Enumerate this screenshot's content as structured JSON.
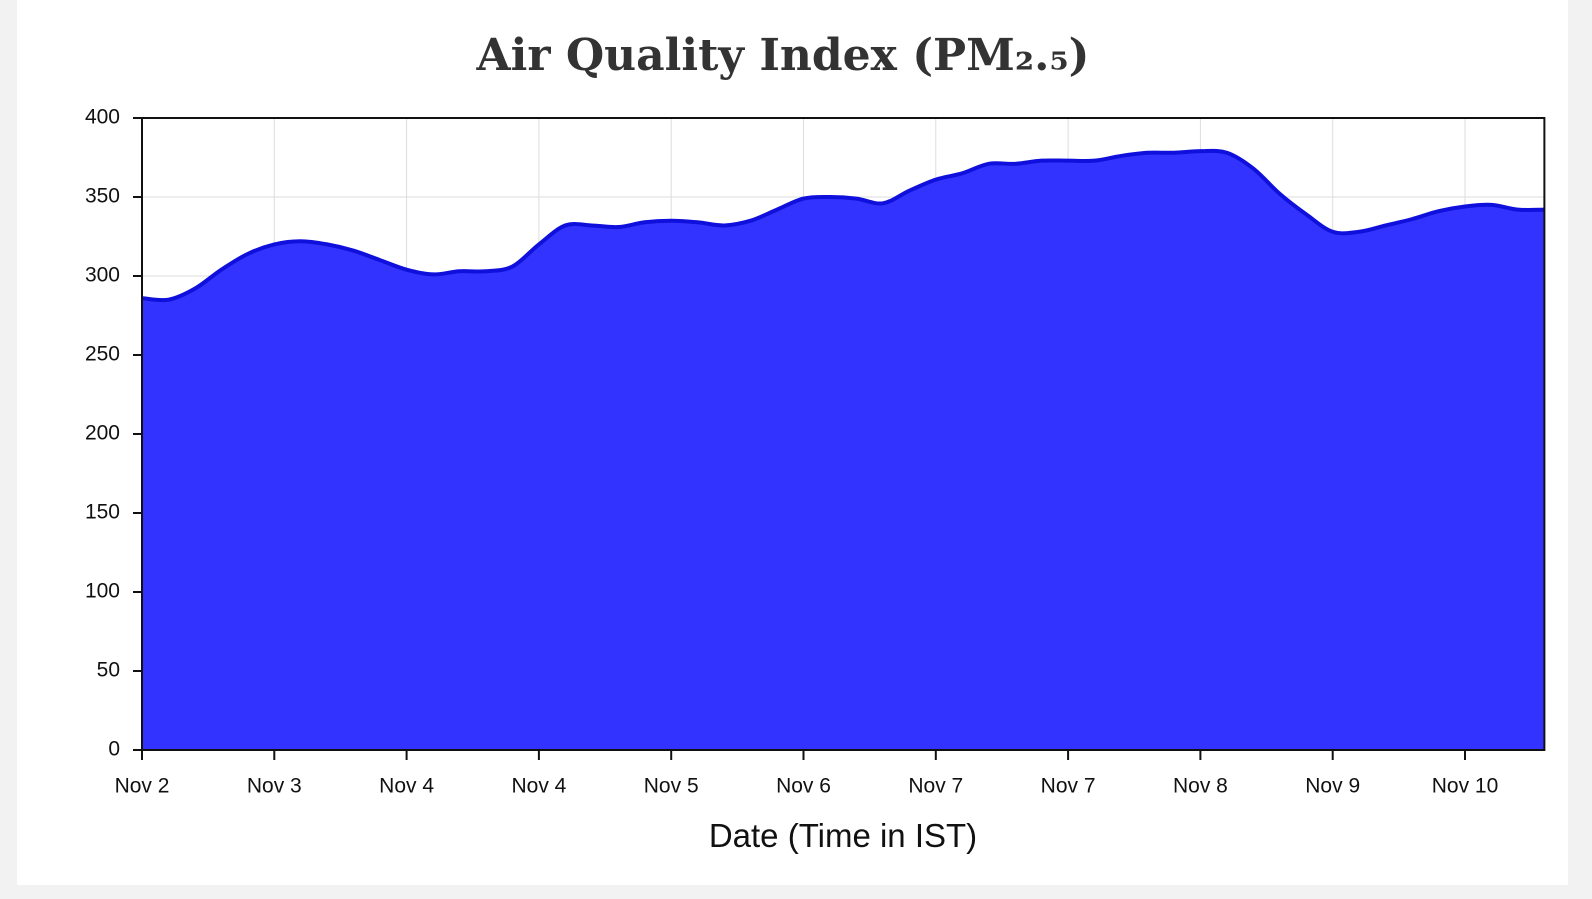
{
  "chart_data": {
    "type": "area",
    "title": "Air Quality Index (PM₂.₅)",
    "x_label": "Date (Time in IST)",
    "categories": [
      "Nov 2",
      null,
      null,
      null,
      null,
      "Nov 3",
      null,
      null,
      null,
      null,
      "Nov 4",
      null,
      null,
      null,
      null,
      "Nov 4",
      null,
      null,
      null,
      null,
      "Nov 5",
      null,
      null,
      null,
      null,
      "Nov 6",
      null,
      null,
      null,
      null,
      "Nov 7",
      null,
      null,
      null,
      null,
      "Nov 7",
      null,
      null,
      null,
      null,
      "Nov 8",
      null,
      null,
      null,
      null,
      "Nov 9",
      null,
      null,
      null,
      null,
      "Nov 10",
      null,
      null,
      null
    ],
    "values": [
      286,
      285,
      292,
      304,
      314,
      320,
      322,
      320,
      316,
      310,
      304,
      301,
      303,
      303,
      306,
      320,
      332,
      332,
      331,
      334,
      335,
      334,
      332,
      335,
      342,
      349,
      350,
      349,
      346,
      354,
      361,
      365,
      371,
      371,
      373,
      373,
      373,
      376,
      378,
      378,
      379,
      378,
      368,
      352,
      339,
      328,
      328,
      332,
      336,
      341,
      344,
      345,
      342,
      342
    ],
    "color": "#3333ff",
    "line_color": "#1010dd",
    "ylim": [
      0,
      400
    ],
    "yticks": [
      0,
      50,
      100,
      150,
      200,
      250,
      300,
      350,
      400
    ],
    "grid": true
  }
}
